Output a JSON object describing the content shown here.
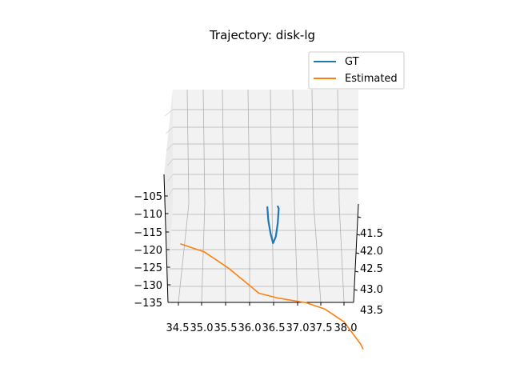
{
  "chart_data": {
    "type": "line",
    "projection": "3d",
    "title": "Trajectory: disk-lg",
    "xlabel": "",
    "ylabel": "",
    "zlabel": "",
    "grid": true,
    "legend_position": "top-right",
    "xlim": [
      34.4,
      38.3
    ],
    "ylim": [
      41.3,
      43.5
    ],
    "zlim": [
      -135,
      -102
    ],
    "x_ticks": [
      34.5,
      35.0,
      35.5,
      36.0,
      36.5,
      37.0,
      37.5,
      38.0
    ],
    "x_tick_labels": [
      "34.5",
      "35.0",
      "35.5",
      "36.0",
      "36.5",
      "37.0",
      "37.5",
      "38.0"
    ],
    "y_ticks": [
      41.5,
      42.0,
      42.5,
      43.0,
      43.5
    ],
    "y_tick_labels": [
      "41.5",
      "42.0",
      "42.5",
      "43.0",
      "43.5"
    ],
    "z_ticks": [
      -105,
      -110,
      -115,
      -120,
      -125,
      -130,
      -135
    ],
    "z_tick_labels": [
      "−105",
      "−110",
      "−115",
      "−120",
      "−125",
      "−130",
      "−135"
    ],
    "series": [
      {
        "name": "GT",
        "color": "#1f77b4",
        "points": [
          [
            36.38,
            41.4,
            -118.0
          ],
          [
            36.4,
            41.4,
            -113.0
          ],
          [
            36.45,
            41.4,
            -108.0
          ],
          [
            36.5,
            41.4,
            -104.5
          ],
          [
            36.56,
            41.4,
            -107.0
          ],
          [
            36.6,
            41.4,
            -112.0
          ],
          [
            36.62,
            41.4,
            -117.5
          ],
          [
            36.6,
            41.4,
            -118.3
          ]
        ]
      },
      {
        "name": "Estimated",
        "color": "#ff7f0e",
        "points": [
          [
            34.55,
            41.8,
            -120.0
          ],
          [
            35.05,
            41.8,
            -117.5
          ],
          [
            35.55,
            41.8,
            -112.5
          ],
          [
            36.0,
            41.8,
            -107.0
          ],
          [
            36.2,
            41.8,
            -104.5
          ],
          [
            36.6,
            41.8,
            -103.0
          ],
          [
            37.2,
            41.8,
            -101.5
          ],
          [
            37.6,
            41.8,
            -99.5
          ],
          [
            38.0,
            41.8,
            -95.5
          ],
          [
            38.35,
            41.8,
            -88.5
          ],
          [
            38.4,
            41.8,
            -87.0
          ]
        ]
      }
    ]
  }
}
